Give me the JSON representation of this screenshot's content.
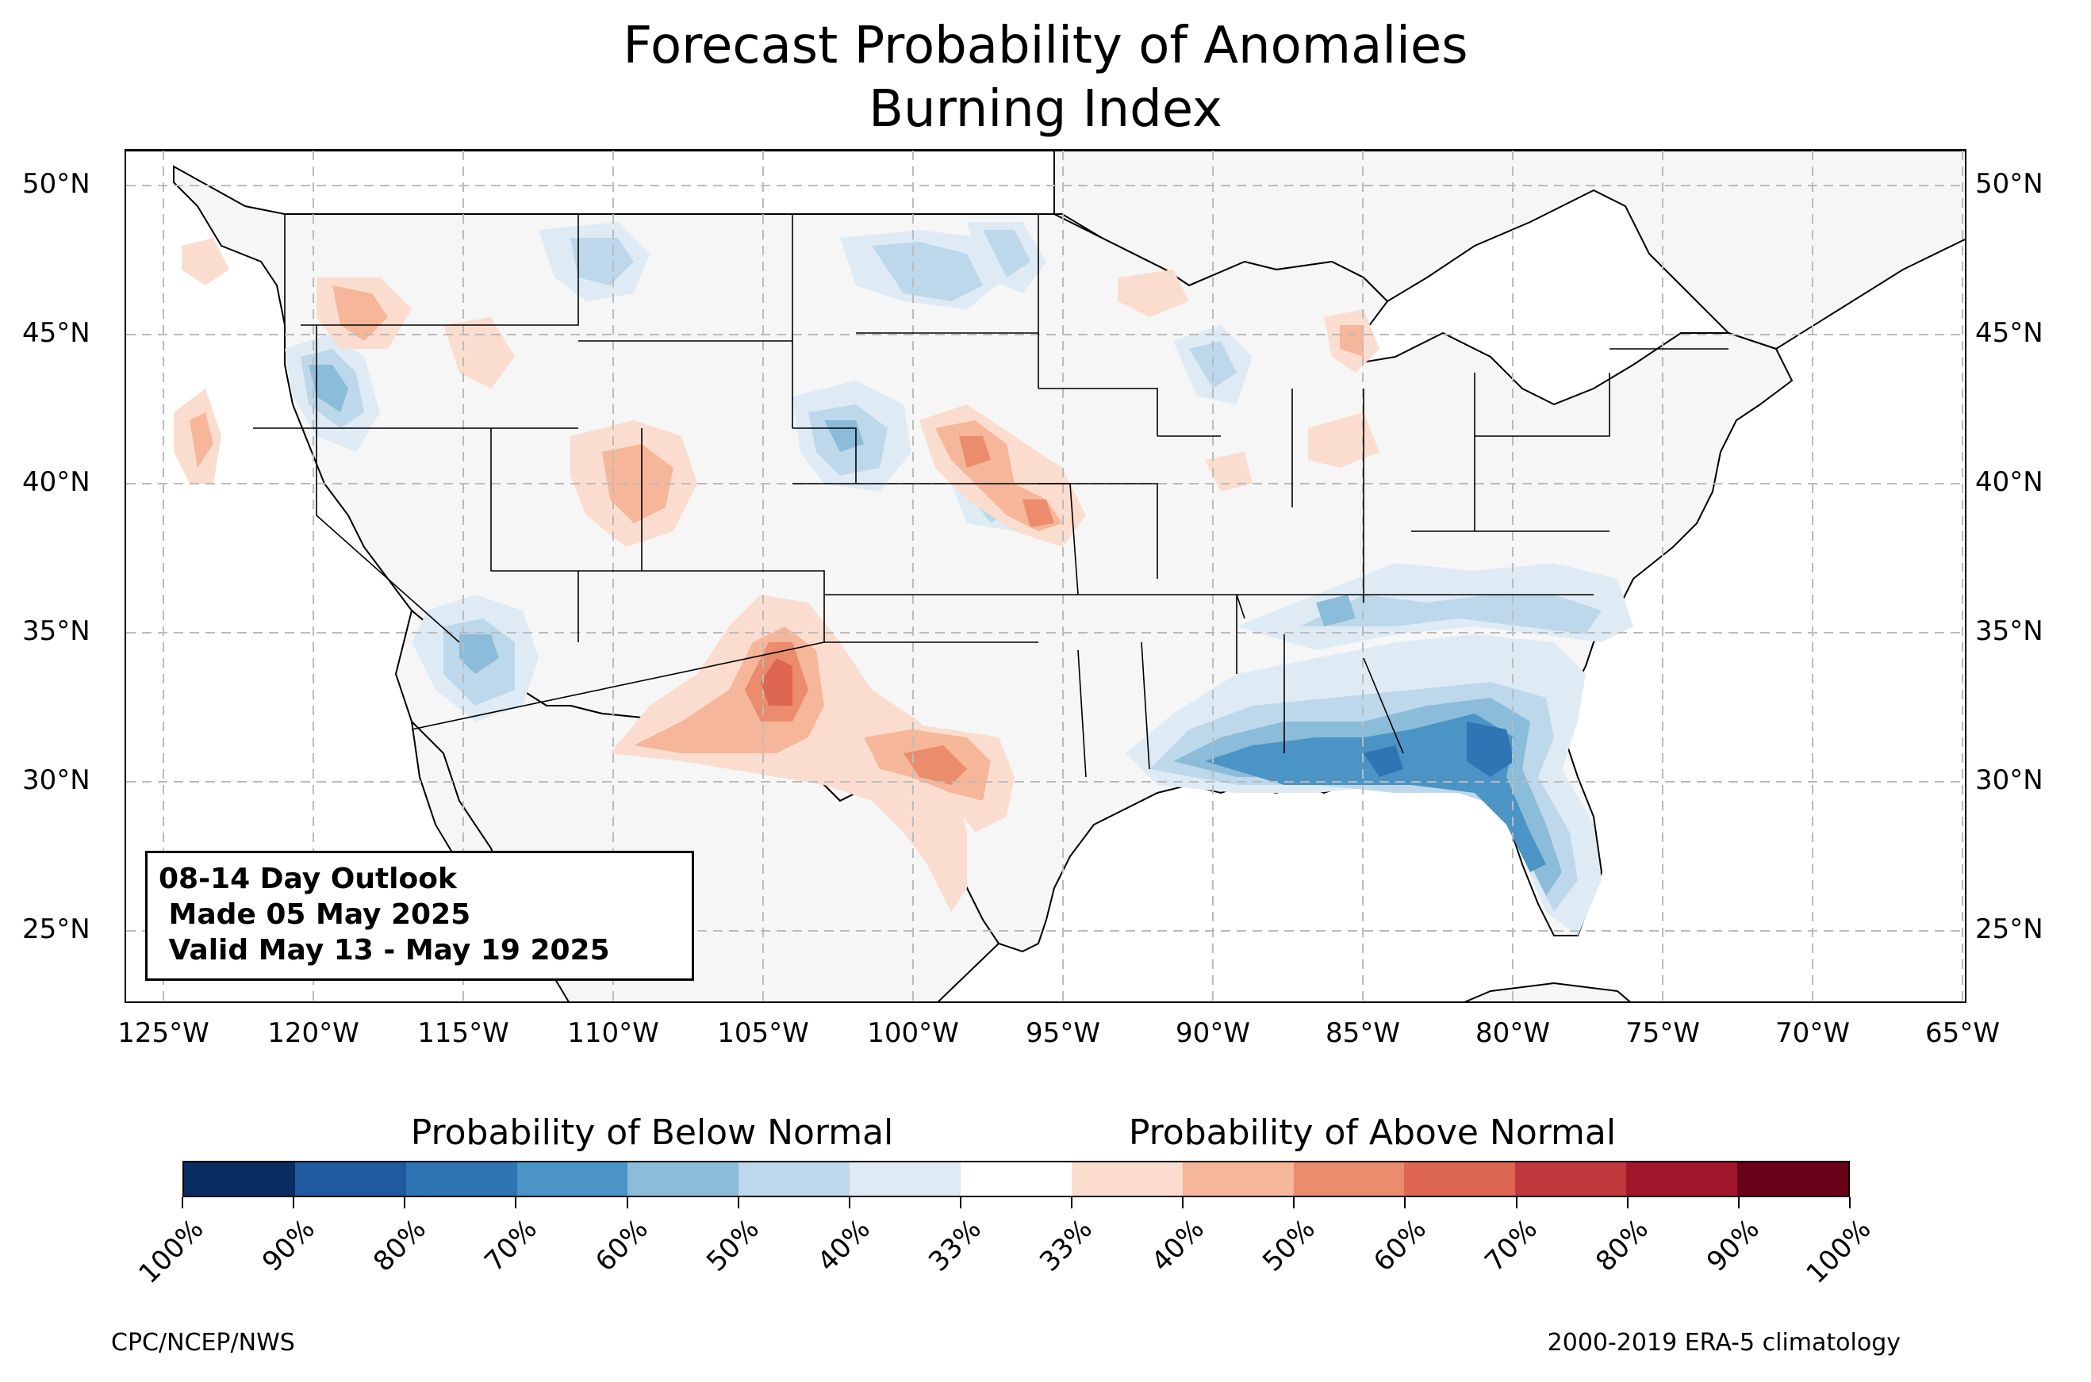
{
  "title": {
    "line1": "Forecast Probability of Anomalies",
    "line2": "Burning Index"
  },
  "map": {
    "lat_labels": [
      "50°N",
      "45°N",
      "40°N",
      "35°N",
      "30°N",
      "25°N"
    ],
    "lon_labels": [
      "125°W",
      "120°W",
      "115°W",
      "110°W",
      "105°W",
      "100°W",
      "95°W",
      "90°W",
      "85°W",
      "80°W",
      "75°W",
      "70°W",
      "65°W"
    ],
    "land_color": "#f5f6f5",
    "water_color": "#ffffff",
    "grid": "dashed"
  },
  "info_box": {
    "line1": "08-14 Day Outlook",
    "line2": " Made 05 May 2025",
    "line3": " Valid May 13 - May 19 2025"
  },
  "colorbar": {
    "below_heading": "Probability of Below Normal",
    "above_heading": "Probability of Above Normal",
    "tick_labels": [
      "100%",
      "90%",
      "80%",
      "70%",
      "60%",
      "50%",
      "40%",
      "33%",
      "33%",
      "40%",
      "50%",
      "60%",
      "70%",
      "80%",
      "90%",
      "100%"
    ],
    "colors": [
      "#0a2d61",
      "#1f5a9e",
      "#2f74b3",
      "#4a94c6",
      "#8bbcd9",
      "#bcd8ea",
      "#deebf5",
      "#ffffff",
      "#fbddcf",
      "#f6b69a",
      "#eb8c6d",
      "#dd6750",
      "#c0383c",
      "#a1162a",
      "#6b0019"
    ]
  },
  "footer": {
    "left": "CPC/NCEP/NWS",
    "right": "2000-2019 ERA-5 climatology"
  },
  "anomaly_regions": [
    {
      "name": "southeast-below",
      "category": "below",
      "max_prob": "70%"
    },
    {
      "name": "florida-below",
      "category": "below",
      "max_prob": "70%"
    },
    {
      "name": "arizona-below",
      "category": "below",
      "max_prob": "50%"
    },
    {
      "name": "idaho-below",
      "category": "below",
      "max_prob": "60%"
    },
    {
      "name": "new-mexico-above",
      "category": "above",
      "max_prob": "60%"
    },
    {
      "name": "texas-above",
      "category": "above",
      "max_prob": "50%"
    },
    {
      "name": "kansas-above",
      "category": "above",
      "max_prob": "50%"
    },
    {
      "name": "oregon-above",
      "category": "above",
      "max_prob": "50%"
    }
  ]
}
